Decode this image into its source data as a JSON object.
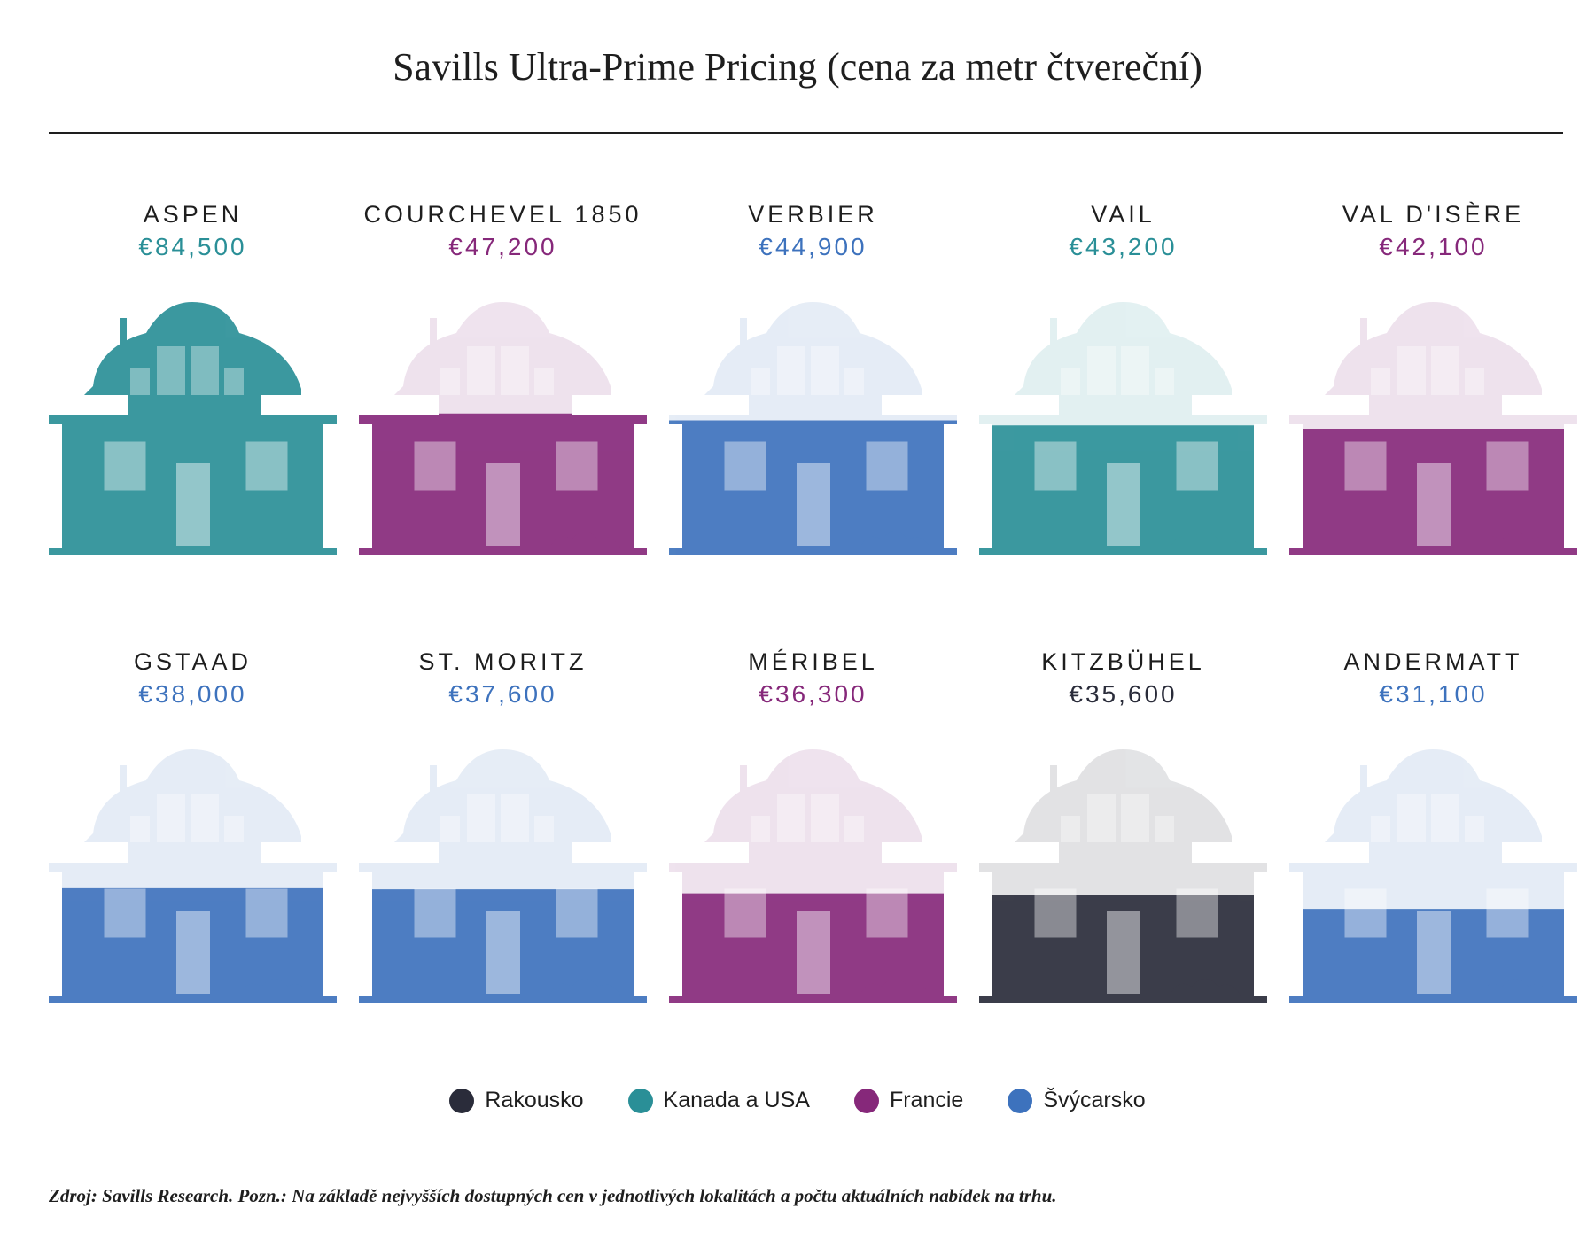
{
  "title": "Savills Ultra-Prime Pricing (cena za metr čtvereční)",
  "footnote": "Zdroj: Savills Research. Pozn.: Na základě nejvyšších dostupných cen v jednotlivých lokalitách a počtu aktuálních nabídek na trhu.",
  "colors": {
    "Rakousko": "#2a2c3a",
    "Kanada a USA": "#2a8f97",
    "Francie": "#86287a",
    "Švýcarsko": "#3d72bd"
  },
  "legend": [
    {
      "label": "Rakousko",
      "color": "#2a2c3a"
    },
    {
      "label": "Kanada a USA",
      "color": "#2a8f97"
    },
    {
      "label": "Francie",
      "color": "#86287a"
    },
    {
      "label": "Švýcarsko",
      "color": "#3d72bd"
    }
  ],
  "chart_data": {
    "type": "bar",
    "categories": [
      "ASPEN",
      "COURCHEVEL 1850",
      "VERBIER",
      "VAIL",
      "VAL D'ISÈRE",
      "GSTAAD",
      "ST. MORITZ",
      "MÉRIBEL",
      "KITZBÜHEL",
      "ANDERMATT"
    ],
    "values": [
      84500,
      47200,
      44900,
      43200,
      42100,
      38000,
      37600,
      36300,
      35600,
      31100
    ],
    "value_labels": [
      "€84,500",
      "€47,200",
      "€44,900",
      "€43,200",
      "€42,100",
      "€38,000",
      "€37,600",
      "€36,300",
      "€35,600",
      "€31,100"
    ],
    "regions": [
      "Kanada a USA",
      "Francie",
      "Švýcarsko",
      "Kanada a USA",
      "Francie",
      "Švýcarsko",
      "Švýcarsko",
      "Francie",
      "Rakousko",
      "Švýcarsko"
    ],
    "title": "Savills Ultra-Prime Pricing (cena za metr čtvereční)",
    "ylim": [
      0,
      84500
    ],
    "legend_position": "bottom"
  }
}
